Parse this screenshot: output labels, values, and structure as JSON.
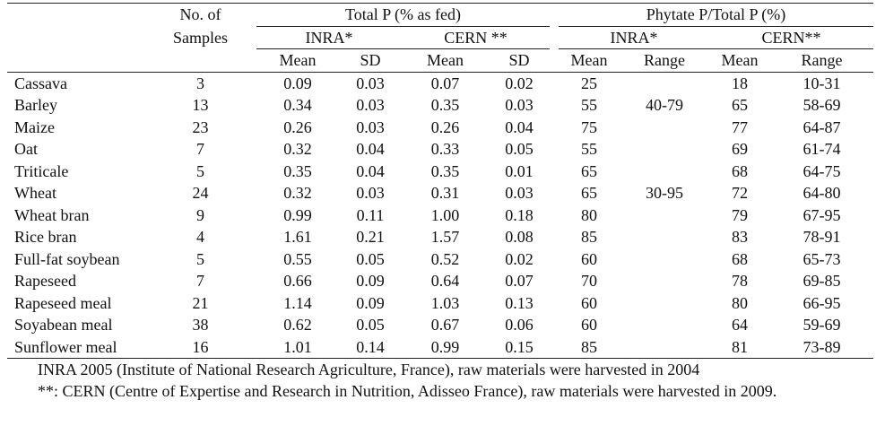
{
  "header": {
    "samples_line1": "No. of",
    "samples_line2": "Samples",
    "total_p": "Total P (% as fed)",
    "phytate_p": "Phytate P/Total P (%)",
    "inra": "INRA*",
    "cern": "CERN **",
    "inra2": "INRA*",
    "cern2": "CERN**",
    "mean": "Mean",
    "sd": "SD",
    "range": "Range"
  },
  "rows": [
    {
      "name": "Cassava",
      "n": "3",
      "inra_mean": "0.09",
      "inra_sd": "0.03",
      "cern_mean": "0.07",
      "cern_sd": "0.02",
      "ph_inra_mean": "25",
      "ph_inra_range": "",
      "ph_cern_mean": "18",
      "ph_cern_range": "10-31"
    },
    {
      "name": "Barley",
      "n": "13",
      "inra_mean": "0.34",
      "inra_sd": "0.03",
      "cern_mean": "0.35",
      "cern_sd": "0.03",
      "ph_inra_mean": "55",
      "ph_inra_range": "40-79",
      "ph_cern_mean": "65",
      "ph_cern_range": "58-69"
    },
    {
      "name": "Maize",
      "n": "23",
      "inra_mean": "0.26",
      "inra_sd": "0.03",
      "cern_mean": "0.26",
      "cern_sd": "0.04",
      "ph_inra_mean": "75",
      "ph_inra_range": "",
      "ph_cern_mean": "77",
      "ph_cern_range": "64-87"
    },
    {
      "name": "Oat",
      "n": "7",
      "inra_mean": "0.32",
      "inra_sd": "0.04",
      "cern_mean": "0.33",
      "cern_sd": "0.05",
      "ph_inra_mean": "55",
      "ph_inra_range": "",
      "ph_cern_mean": "69",
      "ph_cern_range": "61-74"
    },
    {
      "name": "Triticale",
      "n": "5",
      "inra_mean": "0.35",
      "inra_sd": "0.04",
      "cern_mean": "0.35",
      "cern_sd": "0.01",
      "ph_inra_mean": "65",
      "ph_inra_range": "",
      "ph_cern_mean": "68",
      "ph_cern_range": "64-75"
    },
    {
      "name": "Wheat",
      "n": "24",
      "inra_mean": "0.32",
      "inra_sd": "0.03",
      "cern_mean": "0.31",
      "cern_sd": "0.03",
      "ph_inra_mean": "65",
      "ph_inra_range": "30-95",
      "ph_cern_mean": "72",
      "ph_cern_range": "64-80"
    },
    {
      "name": "Wheat bran",
      "n": "9",
      "inra_mean": "0.99",
      "inra_sd": "0.11",
      "cern_mean": "1.00",
      "cern_sd": "0.18",
      "ph_inra_mean": "80",
      "ph_inra_range": "",
      "ph_cern_mean": "79",
      "ph_cern_range": "67-95"
    },
    {
      "name": "Rice bran",
      "n": "4",
      "inra_mean": "1.61",
      "inra_sd": "0.21",
      "cern_mean": "1.57",
      "cern_sd": "0.08",
      "ph_inra_mean": "85",
      "ph_inra_range": "",
      "ph_cern_mean": "83",
      "ph_cern_range": "78-91"
    },
    {
      "name": "Full-fat soybean",
      "n": "5",
      "inra_mean": "0.55",
      "inra_sd": "0.05",
      "cern_mean": "0.52",
      "cern_sd": "0.02",
      "ph_inra_mean": "60",
      "ph_inra_range": "",
      "ph_cern_mean": "68",
      "ph_cern_range": "65-73"
    },
    {
      "name": "Rapeseed",
      "n": "7",
      "inra_mean": "0.66",
      "inra_sd": "0.09",
      "cern_mean": "0.64",
      "cern_sd": "0.07",
      "ph_inra_mean": "70",
      "ph_inra_range": "",
      "ph_cern_mean": "78",
      "ph_cern_range": "69-85"
    },
    {
      "name": "Rapeseed meal",
      "n": "21",
      "inra_mean": "1.14",
      "inra_sd": "0.09",
      "cern_mean": "1.03",
      "cern_sd": "0.13",
      "ph_inra_mean": "60",
      "ph_inra_range": "",
      "ph_cern_mean": "80",
      "ph_cern_range": "66-95"
    },
    {
      "name": "Soyabean meal",
      "n": "38",
      "inra_mean": "0.62",
      "inra_sd": "0.05",
      "cern_mean": "0.67",
      "cern_sd": "0.06",
      "ph_inra_mean": "60",
      "ph_inra_range": "",
      "ph_cern_mean": "64",
      "ph_cern_range": "59-69"
    },
    {
      "name": "Sunflower meal",
      "n": "16",
      "inra_mean": "1.01",
      "inra_sd": "0.14",
      "cern_mean": "0.99",
      "cern_sd": "0.15",
      "ph_inra_mean": "85",
      "ph_inra_range": "",
      "ph_cern_mean": "81",
      "ph_cern_range": "73-89"
    }
  ],
  "notes": {
    "line1": "INRA 2005 (Institute of National Research Agriculture, France), raw materials were harvested in 2004",
    "line2": "**: CERN (Centre of Expertise and Research in Nutrition, Adisseo France), raw materials were harvested in 2009."
  }
}
